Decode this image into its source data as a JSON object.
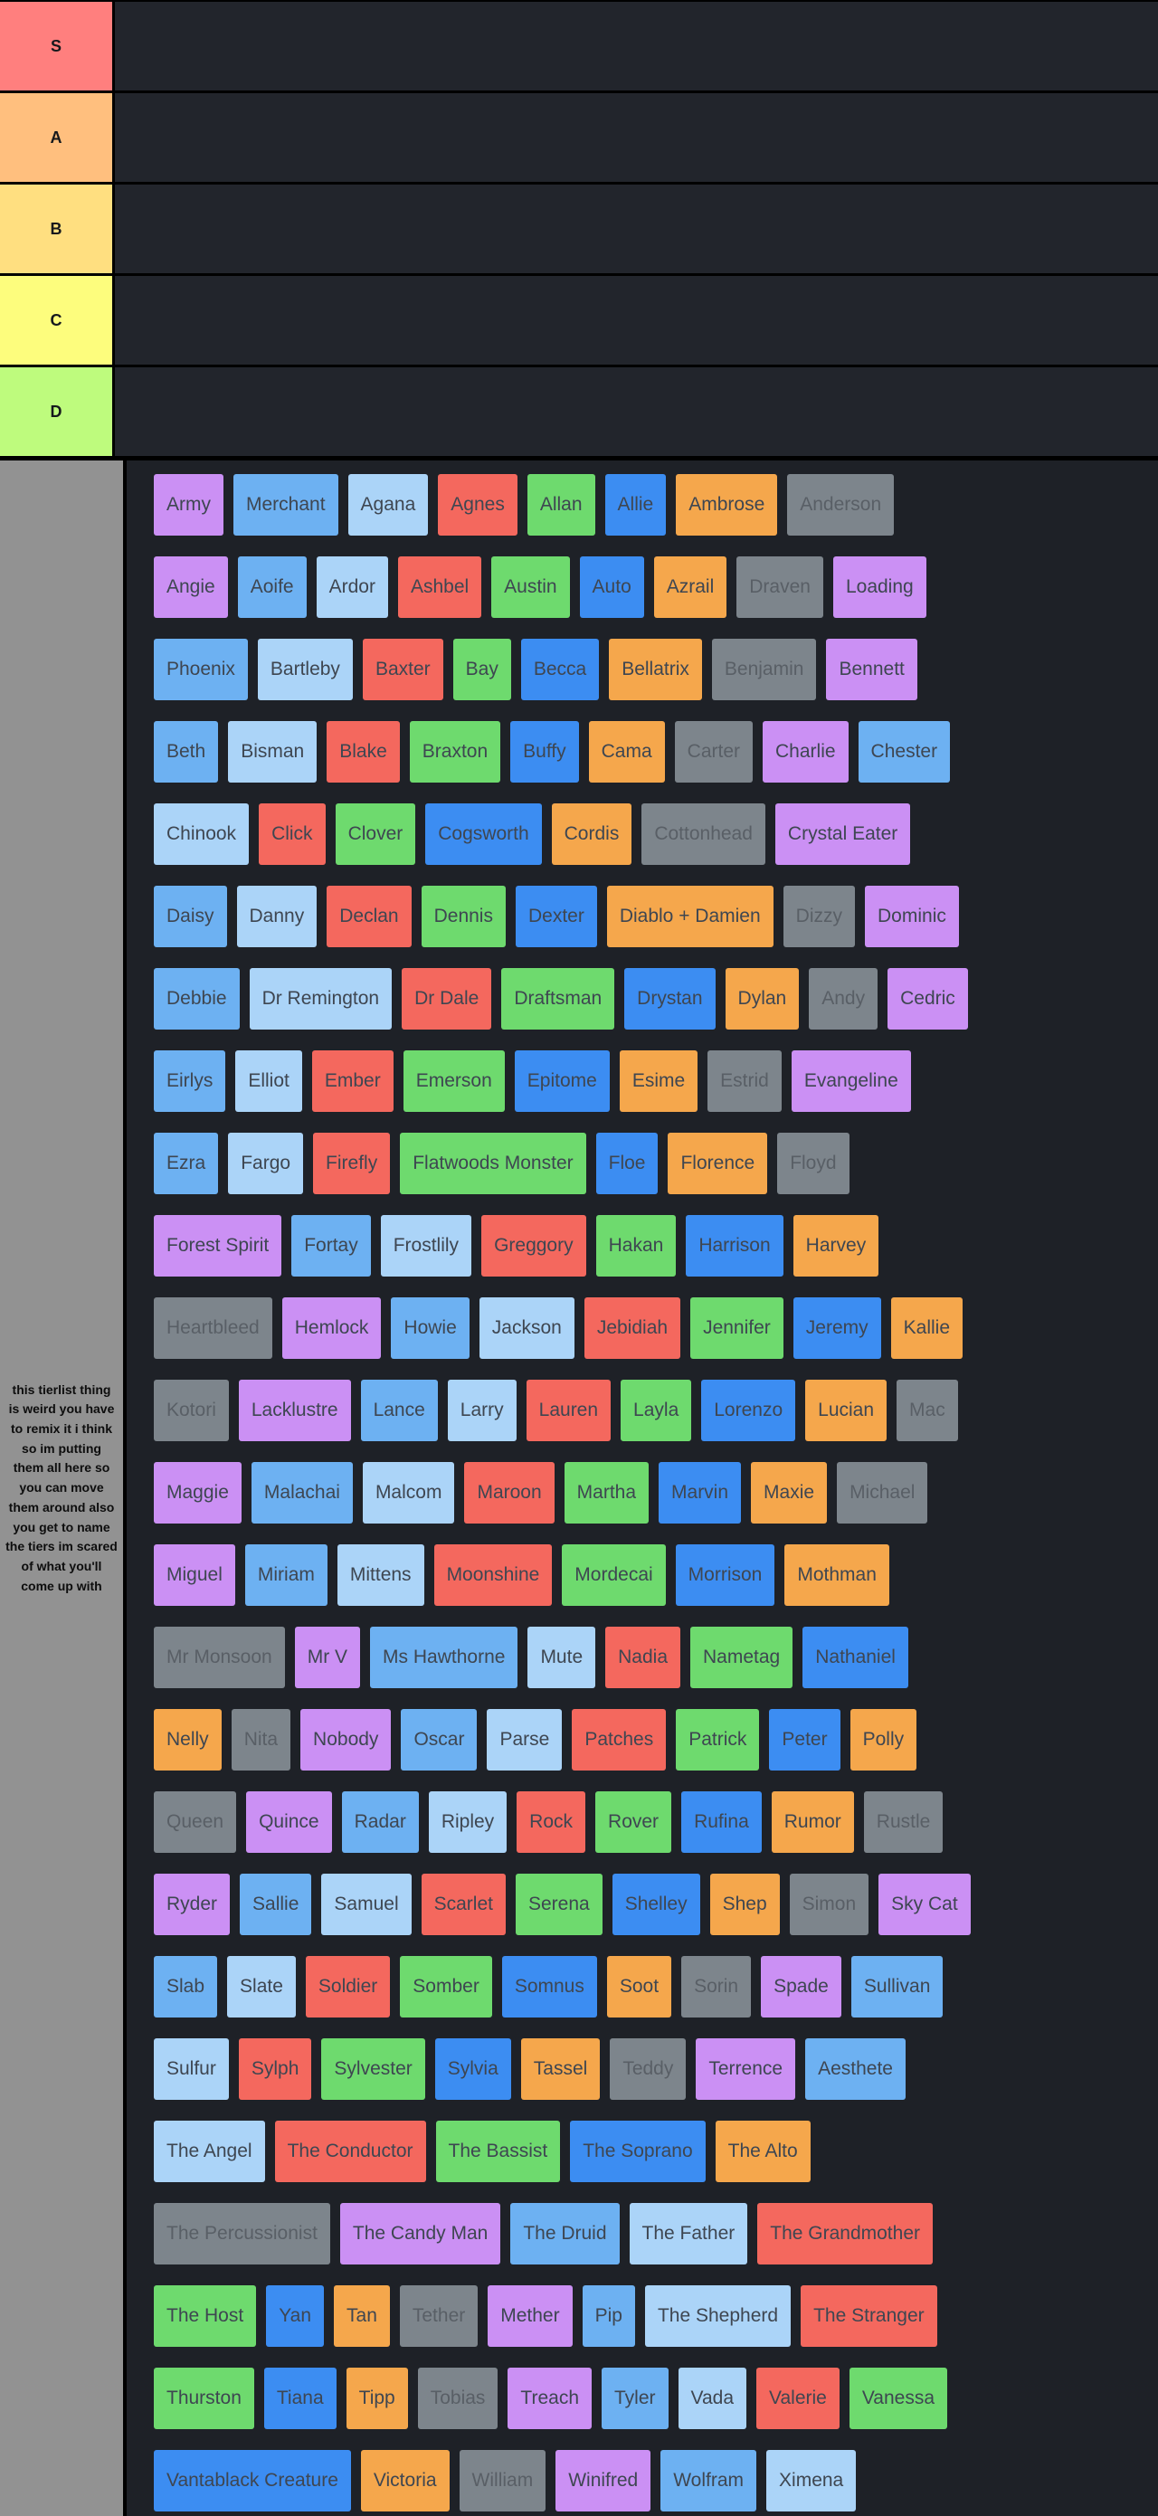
{
  "tiers": [
    {
      "label": "S",
      "color": "#ff7f7e"
    },
    {
      "label": "A",
      "color": "#ffbf7e"
    },
    {
      "label": "B",
      "color": "#ffdf80"
    },
    {
      "label": "C",
      "color": "#fdfd7d"
    },
    {
      "label": "D",
      "color": "#befb7d"
    }
  ],
  "unranked_note": "this tierlist thing is weird you have to remix it i think so im putting them all here so you can move them around also you get to name the tiers im scared of what you'll come up with",
  "palette": {
    "purple": "#cb90f4",
    "skyblue": "#6db1f2",
    "paleblue": "#abd4f8",
    "red": "#f4685e",
    "green": "#6eda6e",
    "blue": "#3c8df2",
    "orange": "#f5a74c",
    "gray": "#7d858c"
  },
  "unranked_rows": [
    [
      {
        "label": "Army",
        "color": "purple"
      },
      {
        "label": "Merchant",
        "color": "skyblue"
      },
      {
        "label": "Agana",
        "color": "paleblue"
      },
      {
        "label": "Agnes",
        "color": "red"
      },
      {
        "label": "Allan",
        "color": "green"
      },
      {
        "label": "Allie",
        "color": "blue"
      },
      {
        "label": "Ambrose",
        "color": "orange"
      },
      {
        "label": "Anderson",
        "color": "gray"
      }
    ],
    [
      {
        "label": "Angie",
        "color": "purple"
      },
      {
        "label": "Aoife",
        "color": "skyblue"
      },
      {
        "label": "Ardor",
        "color": "paleblue"
      },
      {
        "label": "Ashbel",
        "color": "red"
      },
      {
        "label": "Austin",
        "color": "green"
      },
      {
        "label": "Auto",
        "color": "blue"
      },
      {
        "label": "Azrail",
        "color": "orange"
      },
      {
        "label": "Draven",
        "color": "gray"
      },
      {
        "label": "Loading",
        "color": "purple"
      }
    ],
    [
      {
        "label": "Phoenix",
        "color": "skyblue"
      },
      {
        "label": "Bartleby",
        "color": "paleblue"
      },
      {
        "label": "Baxter",
        "color": "red"
      },
      {
        "label": "Bay",
        "color": "green"
      },
      {
        "label": "Becca",
        "color": "blue"
      },
      {
        "label": "Bellatrix",
        "color": "orange"
      },
      {
        "label": "Benjamin",
        "color": "gray"
      },
      {
        "label": "Bennett",
        "color": "purple"
      }
    ],
    [
      {
        "label": "Beth",
        "color": "skyblue"
      },
      {
        "label": "Bisman",
        "color": "paleblue"
      },
      {
        "label": "Blake",
        "color": "red"
      },
      {
        "label": "Braxton",
        "color": "green"
      },
      {
        "label": "Buffy",
        "color": "blue"
      },
      {
        "label": "Cama",
        "color": "orange"
      },
      {
        "label": "Carter",
        "color": "gray"
      },
      {
        "label": "Charlie",
        "color": "purple"
      },
      {
        "label": "Chester",
        "color": "skyblue"
      }
    ],
    [
      {
        "label": "Chinook",
        "color": "paleblue"
      },
      {
        "label": "Click",
        "color": "red"
      },
      {
        "label": "Clover",
        "color": "green"
      },
      {
        "label": "Cogsworth",
        "color": "blue"
      },
      {
        "label": "Cordis",
        "color": "orange"
      },
      {
        "label": "Cottonhead",
        "color": "gray"
      },
      {
        "label": "Crystal Eater",
        "color": "purple"
      }
    ],
    [
      {
        "label": "Daisy",
        "color": "skyblue"
      },
      {
        "label": "Danny",
        "color": "paleblue"
      },
      {
        "label": "Declan",
        "color": "red"
      },
      {
        "label": "Dennis",
        "color": "green"
      },
      {
        "label": "Dexter",
        "color": "blue"
      },
      {
        "label": "Diablo + Damien",
        "color": "orange"
      },
      {
        "label": "Dizzy",
        "color": "gray"
      },
      {
        "label": "Dominic",
        "color": "purple"
      }
    ],
    [
      {
        "label": "Debbie",
        "color": "skyblue"
      },
      {
        "label": "Dr Remington",
        "color": "paleblue"
      },
      {
        "label": "Dr Dale",
        "color": "red"
      },
      {
        "label": "Draftsman",
        "color": "green"
      },
      {
        "label": "Drystan",
        "color": "blue"
      },
      {
        "label": "Dylan",
        "color": "orange"
      },
      {
        "label": "Andy",
        "color": "gray"
      },
      {
        "label": "Cedric",
        "color": "purple"
      }
    ],
    [
      {
        "label": "Eirlys",
        "color": "skyblue"
      },
      {
        "label": "Elliot",
        "color": "paleblue"
      },
      {
        "label": "Ember",
        "color": "red"
      },
      {
        "label": "Emerson",
        "color": "green"
      },
      {
        "label": "Epitome",
        "color": "blue"
      },
      {
        "label": "Esime",
        "color": "orange"
      },
      {
        "label": "Estrid",
        "color": "gray"
      },
      {
        "label": "Evangeline",
        "color": "purple"
      }
    ],
    [
      {
        "label": "Ezra",
        "color": "skyblue"
      },
      {
        "label": "Fargo",
        "color": "paleblue"
      },
      {
        "label": "Firefly",
        "color": "red"
      },
      {
        "label": "Flatwoods Monster",
        "color": "green"
      },
      {
        "label": "Floe",
        "color": "blue"
      },
      {
        "label": "Florence",
        "color": "orange"
      },
      {
        "label": "Floyd",
        "color": "gray"
      }
    ],
    [
      {
        "label": "Forest Spirit",
        "color": "purple"
      },
      {
        "label": "Fortay",
        "color": "skyblue"
      },
      {
        "label": "Frostlily",
        "color": "paleblue"
      },
      {
        "label": "Greggory",
        "color": "red"
      },
      {
        "label": "Hakan",
        "color": "green"
      },
      {
        "label": "Harrison",
        "color": "blue"
      },
      {
        "label": "Harvey",
        "color": "orange"
      }
    ],
    [
      {
        "label": "Heartbleed",
        "color": "gray"
      },
      {
        "label": "Hemlock",
        "color": "purple"
      },
      {
        "label": "Howie",
        "color": "skyblue"
      },
      {
        "label": "Jackson",
        "color": "paleblue"
      },
      {
        "label": "Jebidiah",
        "color": "red"
      },
      {
        "label": "Jennifer",
        "color": "green"
      },
      {
        "label": "Jeremy",
        "color": "blue"
      },
      {
        "label": "Kallie",
        "color": "orange"
      }
    ],
    [
      {
        "label": "Kotori",
        "color": "gray"
      },
      {
        "label": "Lacklustre",
        "color": "purple"
      },
      {
        "label": "Lance",
        "color": "skyblue"
      },
      {
        "label": "Larry",
        "color": "paleblue"
      },
      {
        "label": "Lauren",
        "color": "red"
      },
      {
        "label": "Layla",
        "color": "green"
      },
      {
        "label": "Lorenzo",
        "color": "blue"
      },
      {
        "label": "Lucian",
        "color": "orange"
      },
      {
        "label": "Mac",
        "color": "gray"
      }
    ],
    [
      {
        "label": "Maggie",
        "color": "purple"
      },
      {
        "label": "Malachai",
        "color": "skyblue"
      },
      {
        "label": "Malcom",
        "color": "paleblue"
      },
      {
        "label": "Maroon",
        "color": "red"
      },
      {
        "label": "Martha",
        "color": "green"
      },
      {
        "label": "Marvin",
        "color": "blue"
      },
      {
        "label": "Maxie",
        "color": "orange"
      },
      {
        "label": "Michael",
        "color": "gray"
      }
    ],
    [
      {
        "label": "Miguel",
        "color": "purple"
      },
      {
        "label": "Miriam",
        "color": "skyblue"
      },
      {
        "label": "Mittens",
        "color": "paleblue"
      },
      {
        "label": "Moonshine",
        "color": "red"
      },
      {
        "label": "Mordecai",
        "color": "green"
      },
      {
        "label": "Morrison",
        "color": "blue"
      },
      {
        "label": "Mothman",
        "color": "orange"
      }
    ],
    [
      {
        "label": "Mr Monsoon",
        "color": "gray"
      },
      {
        "label": "Mr V",
        "color": "purple"
      },
      {
        "label": "Ms Hawthorne",
        "color": "skyblue"
      },
      {
        "label": "Mute",
        "color": "paleblue"
      },
      {
        "label": "Nadia",
        "color": "red"
      },
      {
        "label": "Nametag",
        "color": "green"
      },
      {
        "label": "Nathaniel",
        "color": "blue"
      }
    ],
    [
      {
        "label": "Nelly",
        "color": "orange"
      },
      {
        "label": "Nita",
        "color": "gray"
      },
      {
        "label": "Nobody",
        "color": "purple"
      },
      {
        "label": "Oscar",
        "color": "skyblue"
      },
      {
        "label": "Parse",
        "color": "paleblue"
      },
      {
        "label": "Patches",
        "color": "red"
      },
      {
        "label": "Patrick",
        "color": "green"
      },
      {
        "label": "Peter",
        "color": "blue"
      },
      {
        "label": "Polly",
        "color": "orange"
      }
    ],
    [
      {
        "label": "Queen",
        "color": "gray"
      },
      {
        "label": "Quince",
        "color": "purple"
      },
      {
        "label": "Radar",
        "color": "skyblue"
      },
      {
        "label": "Ripley",
        "color": "paleblue"
      },
      {
        "label": "Rock",
        "color": "red"
      },
      {
        "label": "Rover",
        "color": "green"
      },
      {
        "label": "Rufina",
        "color": "blue"
      },
      {
        "label": "Rumor",
        "color": "orange"
      },
      {
        "label": "Rustle",
        "color": "gray"
      }
    ],
    [
      {
        "label": "Ryder",
        "color": "purple"
      },
      {
        "label": "Sallie",
        "color": "skyblue"
      },
      {
        "label": "Samuel",
        "color": "paleblue"
      },
      {
        "label": "Scarlet",
        "color": "red"
      },
      {
        "label": "Serena",
        "color": "green"
      },
      {
        "label": "Shelley",
        "color": "blue"
      },
      {
        "label": "Shep",
        "color": "orange"
      },
      {
        "label": "Simon",
        "color": "gray"
      },
      {
        "label": "Sky Cat",
        "color": "purple"
      }
    ],
    [
      {
        "label": "Slab",
        "color": "skyblue"
      },
      {
        "label": "Slate",
        "color": "paleblue"
      },
      {
        "label": "Soldier",
        "color": "red"
      },
      {
        "label": "Somber",
        "color": "green"
      },
      {
        "label": "Somnus",
        "color": "blue"
      },
      {
        "label": "Soot",
        "color": "orange"
      },
      {
        "label": "Sorin",
        "color": "gray"
      },
      {
        "label": "Spade",
        "color": "purple"
      },
      {
        "label": "Sullivan",
        "color": "skyblue"
      }
    ],
    [
      {
        "label": "Sulfur",
        "color": "paleblue"
      },
      {
        "label": "Sylph",
        "color": "red"
      },
      {
        "label": "Sylvester",
        "color": "green"
      },
      {
        "label": "Sylvia",
        "color": "blue"
      },
      {
        "label": "Tassel",
        "color": "orange"
      },
      {
        "label": "Teddy",
        "color": "gray"
      },
      {
        "label": "Terrence",
        "color": "purple"
      },
      {
        "label": "Aesthete",
        "color": "skyblue"
      }
    ],
    [
      {
        "label": "The Angel",
        "color": "paleblue"
      },
      {
        "label": "The Conductor",
        "color": "red"
      },
      {
        "label": "The Bassist",
        "color": "green"
      },
      {
        "label": "The Soprano",
        "color": "blue"
      },
      {
        "label": "The Alto",
        "color": "orange"
      }
    ],
    [
      {
        "label": "The Percussionist",
        "color": "gray"
      },
      {
        "label": "The Candy Man",
        "color": "purple"
      },
      {
        "label": "The Druid",
        "color": "skyblue"
      },
      {
        "label": "The Father",
        "color": "paleblue"
      },
      {
        "label": "The Grandmother",
        "color": "red"
      }
    ],
    [
      {
        "label": "The Host",
        "color": "green"
      },
      {
        "label": "Yan",
        "color": "blue"
      },
      {
        "label": "Tan",
        "color": "orange"
      },
      {
        "label": "Tether",
        "color": "gray"
      },
      {
        "label": "Mether",
        "color": "purple"
      },
      {
        "label": "Pip",
        "color": "skyblue"
      },
      {
        "label": "The Shepherd",
        "color": "paleblue"
      },
      {
        "label": "The Stranger",
        "color": "red"
      }
    ],
    [
      {
        "label": "Thurston",
        "color": "green"
      },
      {
        "label": "Tiana",
        "color": "blue"
      },
      {
        "label": "Tipp",
        "color": "orange"
      },
      {
        "label": "Tobias",
        "color": "gray"
      },
      {
        "label": "Treach",
        "color": "purple"
      },
      {
        "label": "Tyler",
        "color": "skyblue"
      },
      {
        "label": "Vada",
        "color": "paleblue"
      },
      {
        "label": "Valerie",
        "color": "red"
      },
      {
        "label": "Vanessa",
        "color": "green"
      }
    ],
    [
      {
        "label": "Vantablack Creature",
        "color": "blue"
      },
      {
        "label": "Victoria",
        "color": "orange"
      },
      {
        "label": "William",
        "color": "gray"
      },
      {
        "label": "Winifred",
        "color": "purple"
      },
      {
        "label": "Wolfram",
        "color": "skyblue"
      },
      {
        "label": "Ximena",
        "color": "paleblue"
      }
    ]
  ]
}
